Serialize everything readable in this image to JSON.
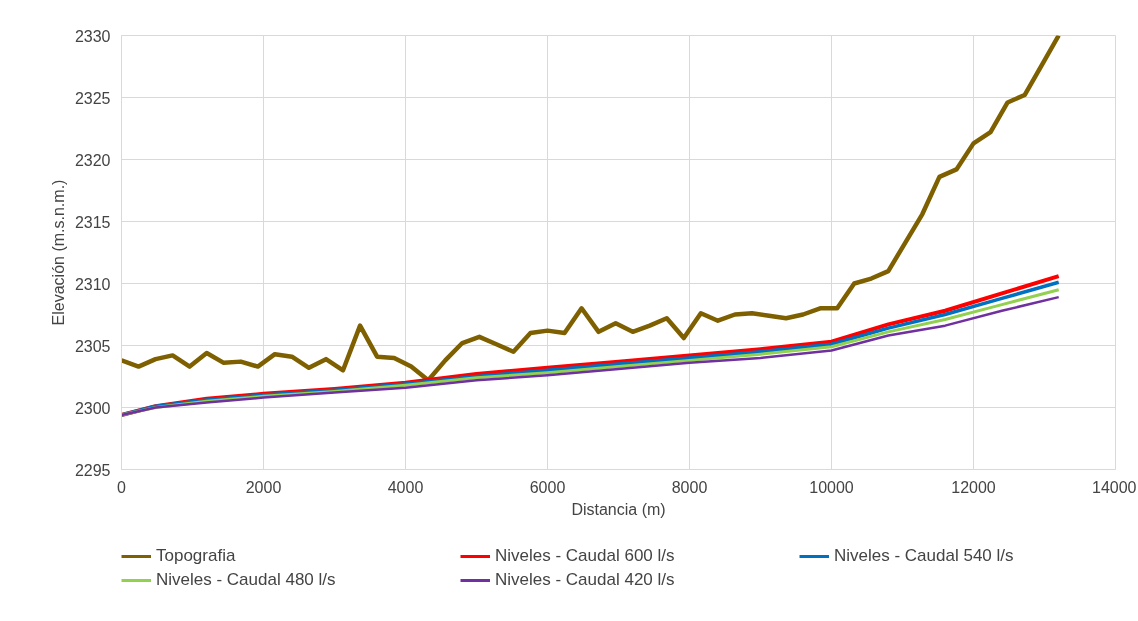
{
  "chart_data": {
    "type": "line",
    "xlabel": "Distancia (m)",
    "ylabel": "Elevación (m.s.n.m.)",
    "xlim": [
      0,
      14000
    ],
    "ylim": [
      2295,
      2330
    ],
    "xticks": [
      0,
      2000,
      4000,
      6000,
      8000,
      10000,
      12000,
      14000
    ],
    "yticks": [
      2295,
      2300,
      2305,
      2310,
      2315,
      2320,
      2325,
      2330
    ],
    "grid": true,
    "legend": "bottom",
    "marker": "none",
    "line_style": "solid",
    "series": [
      {
        "name": "Topografia",
        "color": "#7f6000",
        "x": [
          0,
          240,
          480,
          720,
          960,
          1200,
          1440,
          1680,
          1920,
          2160,
          2400,
          2640,
          2880,
          3120,
          3360,
          3600,
          3840,
          4080,
          4320,
          4560,
          4800,
          5040,
          5280,
          5520,
          5760,
          6000,
          6240,
          6480,
          6720,
          6960,
          7200,
          7440,
          7680,
          7920,
          8160,
          8400,
          8640,
          8880,
          9120,
          9360,
          9600,
          9840,
          10080,
          10320,
          10560,
          10800,
          11040,
          11280,
          11520,
          11760,
          12000,
          12240,
          12480,
          12720,
          12960,
          13200
        ],
        "values": [
          2303.8,
          2303.3,
          2303.9,
          2304.2,
          2303.3,
          2304.4,
          2303.6,
          2303.7,
          2303.3,
          2304.3,
          2304.1,
          2303.2,
          2303.9,
          2303.0,
          2306.6,
          2304.1,
          2304.0,
          2303.3,
          2302.2,
          2303.8,
          2305.2,
          2305.7,
          2305.1,
          2304.5,
          2306.0,
          2306.2,
          2306.0,
          2308.0,
          2306.1,
          2306.8,
          2306.1,
          2306.6,
          2307.2,
          2305.6,
          2307.6,
          2307.0,
          2307.5,
          2307.6,
          2307.4,
          2307.2,
          2307.5,
          2308.0,
          2308.0,
          2310.0,
          2310.4,
          2311.0,
          2313.3,
          2315.6,
          2318.6,
          2319.2,
          2321.3,
          2322.2,
          2324.6,
          2325.2,
          2327.6,
          2330.0
        ]
      },
      {
        "name": "Niveles - Caudal 600 l/s",
        "color": "#ff0000",
        "x": [
          0,
          480,
          1200,
          2000,
          3000,
          4000,
          5000,
          6000,
          7000,
          8000,
          9000,
          10000,
          10800,
          11600,
          12400,
          13200
        ],
        "values": [
          2299.4,
          2300.1,
          2300.7,
          2301.1,
          2301.5,
          2302.0,
          2302.7,
          2303.2,
          2303.7,
          2304.2,
          2304.7,
          2305.3,
          2306.7,
          2307.8,
          2309.2,
          2310.6
        ]
      },
      {
        "name": "Niveles - Caudal 540 l/s",
        "color": "#0070c0",
        "x": [
          0,
          480,
          1200,
          2000,
          3000,
          4000,
          5000,
          6000,
          7000,
          8000,
          9000,
          10000,
          10800,
          11600,
          12400,
          13200
        ],
        "values": [
          2299.4,
          2300.1,
          2300.6,
          2301.0,
          2301.4,
          2301.9,
          2302.5,
          2303.0,
          2303.5,
          2304.0,
          2304.5,
          2305.1,
          2306.4,
          2307.5,
          2308.8,
          2310.1
        ]
      },
      {
        "name": "Niveles - Caudal 480 l/s",
        "color": "#92d050",
        "x": [
          0,
          480,
          1200,
          2000,
          3000,
          4000,
          5000,
          6000,
          7000,
          8000,
          9000,
          10000,
          10800,
          11600,
          12400,
          13200
        ],
        "values": [
          2299.4,
          2300.0,
          2300.5,
          2300.9,
          2301.3,
          2301.8,
          2302.4,
          2302.8,
          2303.3,
          2303.8,
          2304.3,
          2304.9,
          2306.1,
          2307.1,
          2308.3,
          2309.5
        ]
      },
      {
        "name": "Niveles - Caudal 420 l/s",
        "color": "#7030a0",
        "x": [
          0,
          480,
          1200,
          2000,
          3000,
          4000,
          5000,
          6000,
          7000,
          8000,
          9000,
          10000,
          10800,
          11600,
          12400,
          13200
        ],
        "values": [
          2299.4,
          2300.0,
          2300.4,
          2300.8,
          2301.2,
          2301.6,
          2302.2,
          2302.6,
          2303.1,
          2303.6,
          2304.0,
          2304.6,
          2305.8,
          2306.6,
          2307.8,
          2308.9
        ]
      }
    ]
  }
}
